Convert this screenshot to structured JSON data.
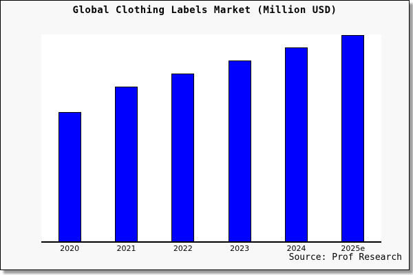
{
  "chart_data": {
    "type": "bar",
    "title": "Global Clothing Labels Market (Million USD)",
    "categories": [
      "2020",
      "2021",
      "2022",
      "2023",
      "2024",
      "2025e"
    ],
    "values": [
      62.7,
      75.0,
      81.3,
      87.7,
      94.0,
      100
    ],
    "values_note": "No y-axis scale or gridlines are shown in the chart; values are relative bar heights expressed as percent of the 2025e bar",
    "ymax": 100,
    "xlabel": "",
    "ylabel": "",
    "grid": false,
    "legend": false,
    "y_axis_visible": false,
    "source_note": "Source: Prof Research",
    "colors": {
      "bar_fill": "#0000ff",
      "bar_edge": "#000000",
      "plot_bg": "#ffffff",
      "frame_bg": "#f8f8f8",
      "text": "#000000"
    }
  }
}
